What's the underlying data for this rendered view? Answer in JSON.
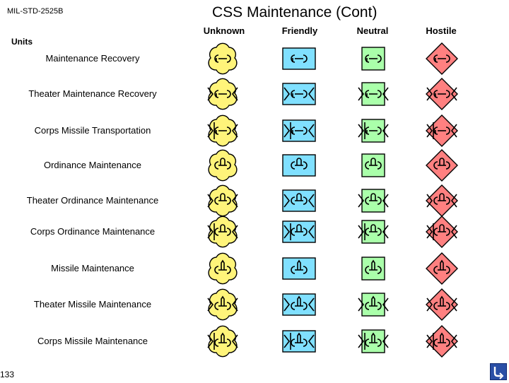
{
  "header": {
    "standard": "MIL-STD-2525B",
    "title": "CSS  Maintenance (Cont)",
    "units_label": "Units",
    "columns": [
      {
        "label": "Unknown",
        "affiliation": "unknown",
        "color": "#FFF47A"
      },
      {
        "label": "Friendly",
        "affiliation": "friendly",
        "color": "#80E0FF"
      },
      {
        "label": "Neutral",
        "affiliation": "neutral",
        "color": "#AAFFAA"
      },
      {
        "label": "Hostile",
        "affiliation": "hostile",
        "color": "#FF8080"
      }
    ]
  },
  "rows": [
    {
      "label": "Maintenance Recovery",
      "glyph": "wrench",
      "echelon": "none"
    },
    {
      "label": "Theater Maintenance Recovery",
      "glyph": "wrench",
      "echelon": "theater"
    },
    {
      "label": "Corps Missile Transportation",
      "glyph": "wrench",
      "echelon": "corps"
    },
    {
      "label": "Ordinance Maintenance",
      "glyph": "ordnance",
      "echelon": "none"
    },
    {
      "label": "Theater Ordinance Maintenance",
      "glyph": "ordnance",
      "echelon": "theater"
    },
    {
      "label": "Corps Ordinance Maintenance",
      "glyph": "ordnance",
      "echelon": "corps"
    },
    {
      "label": "Missile Maintenance",
      "glyph": "missile",
      "echelon": "none"
    },
    {
      "label": "Theater Missile Maintenance",
      "glyph": "missile",
      "echelon": "theater"
    },
    {
      "label": "Corps Missile Maintenance",
      "glyph": "missile",
      "echelon": "corps"
    }
  ],
  "footer": {
    "page_number": "133",
    "nav_icon": "return-arrow-icon"
  }
}
